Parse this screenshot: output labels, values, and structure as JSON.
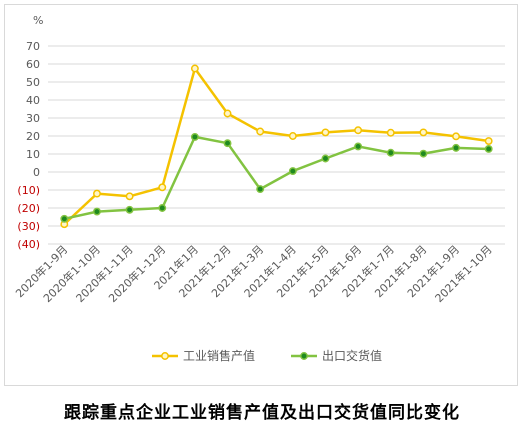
{
  "caption": "跟踪重点企业工业销售产值及出口交货值同比变化",
  "chart_data": {
    "type": "line",
    "unit_label": "%",
    "categories": [
      "2020年1-9月",
      "2020年1-10月",
      "2020年1-11月",
      "2020年1-12月",
      "2021年1月",
      "2021年1-2月",
      "2021年1-3月",
      "2021年1-4月",
      "2021年1-5月",
      "2021年1-6月",
      "2021年1-7月",
      "2021年1-8月",
      "2021年1-9月",
      "2021年1-10月"
    ],
    "ylim": [
      -40,
      70
    ],
    "yticks": [
      70,
      60,
      50,
      40,
      30,
      20,
      10,
      0,
      -10,
      -20,
      -30,
      -40
    ],
    "ytick_labels": [
      "70",
      "60",
      "50",
      "40",
      "30",
      "20",
      "10",
      "0",
      "(10)",
      "(20)",
      "(30)",
      "(40)"
    ],
    "grid": true,
    "legend_position": "bottom",
    "series": [
      {
        "name": "工业销售产值",
        "color": "#f4c200",
        "marker_fill": "#fff6c8",
        "values": [
          -29,
          -12,
          -13.5,
          -8.5,
          57.5,
          32.5,
          22.5,
          20,
          22,
          23.2,
          21.8,
          22,
          19.8,
          17.2
        ]
      },
      {
        "name": "出口交货值",
        "color": "#82c341",
        "marker_fill": "#1f8a1f",
        "values": [
          -26,
          -22,
          -21,
          -20,
          19.5,
          16,
          -9.5,
          0.5,
          7.5,
          14.2,
          10.7,
          10.2,
          13.4,
          12.8
        ]
      }
    ],
    "negative_tick_color": "#c00000",
    "tick_color": "#595959",
    "grid_color": "#d9d9d9"
  }
}
